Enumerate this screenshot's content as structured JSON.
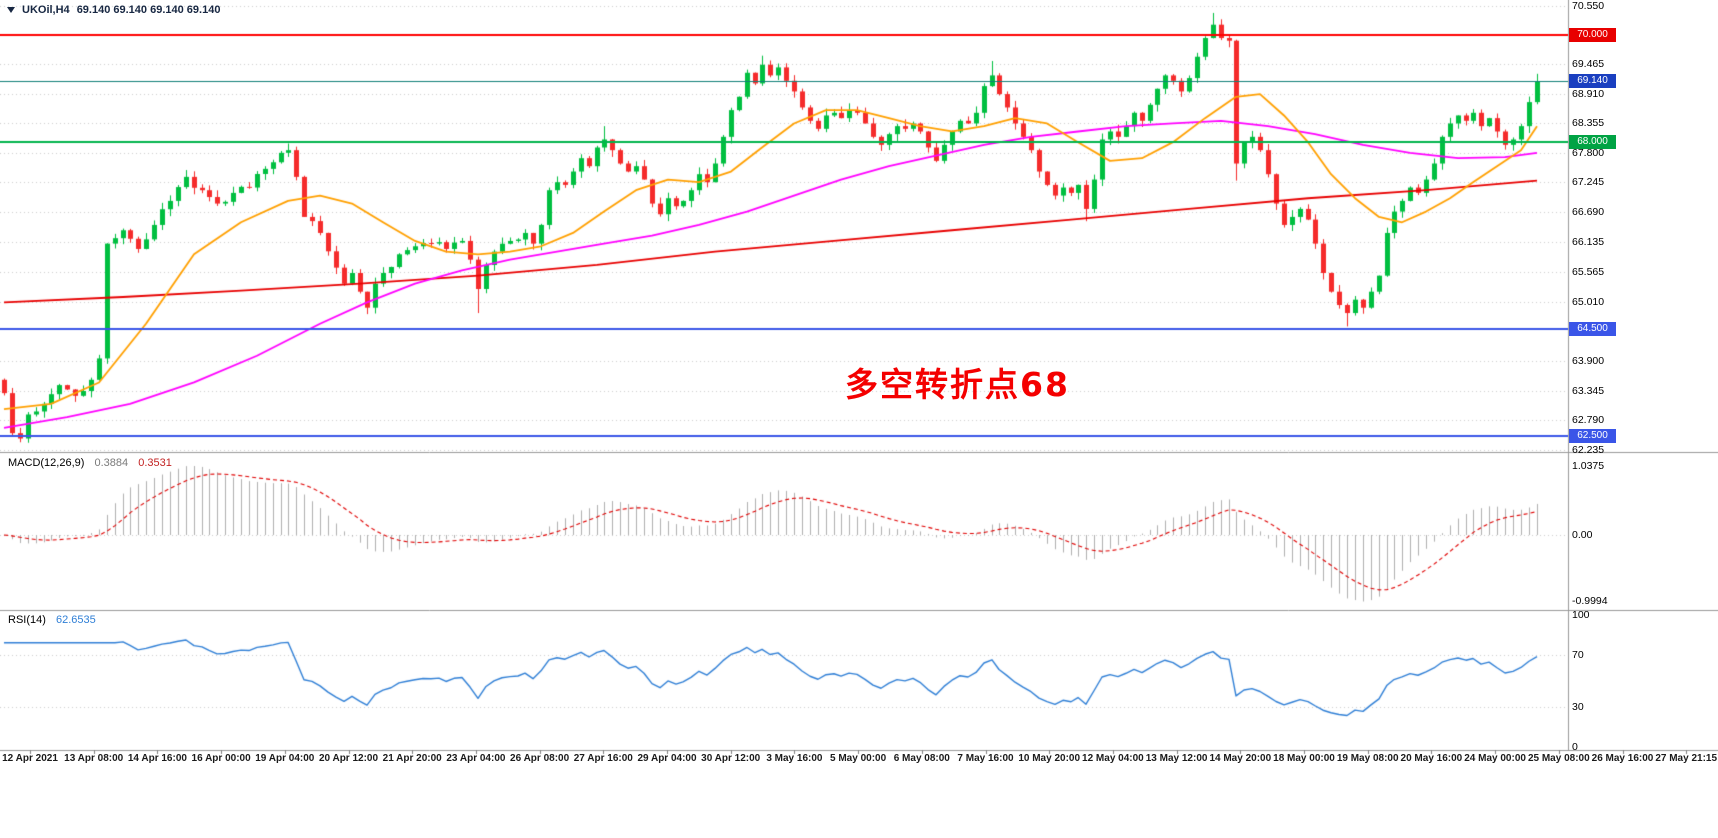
{
  "header": {
    "symbol": "UKOil,H4",
    "ohlc": "69.140 69.140 69.140 69.140"
  },
  "annotation": {
    "text": "多空转折点68",
    "color": "#F40000"
  },
  "price_axis": {
    "regular_labels": [
      "70.550",
      "69.465",
      "68.910",
      "68.355",
      "67.800",
      "67.245",
      "66.690",
      "66.135",
      "65.565",
      "65.010",
      "63.900",
      "63.345",
      "62.790",
      "62.235"
    ]
  },
  "macd_panel": {
    "title": "MACD(12,26,9)",
    "macd_value": "0.3884",
    "signal_value": "0.3531",
    "axis_labels": [
      "1.0375",
      "0.00",
      "-0.9994"
    ]
  },
  "rsi_panel": {
    "title": "RSI(14)",
    "value": "62.6535",
    "axis_labels": [
      "100",
      "70",
      "30",
      "0"
    ]
  },
  "time_axis": {
    "labels": [
      "12 Apr 2021",
      "13 Apr 08:00",
      "14 Apr 16:00",
      "16 Apr 00:00",
      "19 Apr 04:00",
      "20 Apr 12:00",
      "21 Apr 20:00",
      "23 Apr 04:00",
      "26 Apr 08:00",
      "27 Apr 16:00",
      "29 Apr 04:00",
      "30 Apr 12:00",
      "3 May 16:00",
      "5 May 00:00",
      "6 May 08:00",
      "7 May 16:00",
      "10 May 20:00",
      "12 May 04:00",
      "13 May 12:00",
      "14 May 20:00",
      "18 May 00:00",
      "19 May 08:00",
      "20 May 16:00",
      "24 May 00:00",
      "25 May 08:00",
      "26 May 16:00",
      "27 May 21:15"
    ]
  },
  "chart_data": {
    "type": "candlestick",
    "symbol": "UKOil",
    "timeframe": "H4",
    "current_price": 69.14,
    "price_axis_range": [
      62.235,
      70.55
    ],
    "candle_count": 195,
    "bull_color": "#00BF40",
    "bear_color": "#F52B2B",
    "close_anchors": [
      [
        0,
        63.3
      ],
      [
        1,
        62.55
      ],
      [
        2,
        62.45
      ],
      [
        3,
        62.9
      ],
      [
        5,
        63.1
      ],
      [
        7,
        63.45
      ],
      [
        9,
        63.25
      ],
      [
        11,
        63.55
      ],
      [
        12,
        63.95
      ],
      [
        13,
        66.1
      ],
      [
        15,
        66.35
      ],
      [
        17,
        66.0
      ],
      [
        19,
        66.45
      ],
      [
        21,
        66.9
      ],
      [
        23,
        67.35
      ],
      [
        25,
        67.1
      ],
      [
        27,
        66.85
      ],
      [
        29,
        67.05
      ],
      [
        31,
        67.15
      ],
      [
        33,
        67.5
      ],
      [
        35,
        67.8
      ],
      [
        36,
        67.85
      ],
      [
        37,
        67.35
      ],
      [
        38,
        66.6
      ],
      [
        40,
        66.3
      ],
      [
        42,
        65.65
      ],
      [
        43,
        65.35
      ],
      [
        44,
        65.55
      ],
      [
        45,
        65.2
      ],
      [
        46,
        64.9
      ],
      [
        47,
        65.35
      ],
      [
        48,
        65.55
      ],
      [
        50,
        65.9
      ],
      [
        52,
        66.05
      ],
      [
        54,
        66.1
      ],
      [
        56,
        66.0
      ],
      [
        58,
        66.15
      ],
      [
        59,
        65.8
      ],
      [
        60,
        65.25
      ],
      [
        61,
        65.7
      ],
      [
        62,
        65.95
      ],
      [
        64,
        66.15
      ],
      [
        66,
        66.3
      ],
      [
        67,
        66.1
      ],
      [
        68,
        66.45
      ],
      [
        69,
        67.1
      ],
      [
        70,
        67.25
      ],
      [
        71,
        67.2
      ],
      [
        72,
        67.45
      ],
      [
        73,
        67.7
      ],
      [
        74,
        67.55
      ],
      [
        75,
        67.9
      ],
      [
        76,
        68.05
      ],
      [
        77,
        67.85
      ],
      [
        78,
        67.6
      ],
      [
        79,
        67.45
      ],
      [
        80,
        67.55
      ],
      [
        81,
        67.3
      ],
      [
        82,
        66.85
      ],
      [
        83,
        66.65
      ],
      [
        84,
        66.95
      ],
      [
        85,
        66.8
      ],
      [
        86,
        66.9
      ],
      [
        87,
        67.1
      ],
      [
        88,
        67.4
      ],
      [
        89,
        67.25
      ],
      [
        90,
        67.6
      ],
      [
        91,
        68.1
      ],
      [
        92,
        68.6
      ],
      [
        93,
        68.85
      ],
      [
        94,
        69.3
      ],
      [
        95,
        69.1
      ],
      [
        96,
        69.45
      ],
      [
        97,
        69.25
      ],
      [
        98,
        69.4
      ],
      [
        99,
        69.15
      ],
      [
        100,
        68.95
      ],
      [
        101,
        68.65
      ],
      [
        102,
        68.4
      ],
      [
        103,
        68.25
      ],
      [
        104,
        68.5
      ],
      [
        105,
        68.55
      ],
      [
        106,
        68.45
      ],
      [
        107,
        68.6
      ],
      [
        108,
        68.55
      ],
      [
        109,
        68.35
      ],
      [
        110,
        68.1
      ],
      [
        111,
        67.95
      ],
      [
        112,
        68.15
      ],
      [
        113,
        68.3
      ],
      [
        114,
        68.25
      ],
      [
        115,
        68.35
      ],
      [
        116,
        68.2
      ],
      [
        117,
        67.9
      ],
      [
        118,
        67.65
      ],
      [
        119,
        67.95
      ],
      [
        120,
        68.2
      ],
      [
        121,
        68.4
      ],
      [
        122,
        68.35
      ],
      [
        123,
        68.55
      ],
      [
        124,
        69.05
      ],
      [
        125,
        69.25
      ],
      [
        126,
        68.9
      ],
      [
        127,
        68.65
      ],
      [
        128,
        68.35
      ],
      [
        129,
        68.1
      ],
      [
        130,
        67.85
      ],
      [
        131,
        67.45
      ],
      [
        132,
        67.2
      ],
      [
        133,
        67.0
      ],
      [
        134,
        67.15
      ],
      [
        135,
        67.05
      ],
      [
        136,
        67.2
      ],
      [
        137,
        66.75
      ],
      [
        138,
        67.3
      ],
      [
        139,
        68.05
      ],
      [
        140,
        68.2
      ],
      [
        141,
        68.1
      ],
      [
        142,
        68.3
      ],
      [
        143,
        68.55
      ],
      [
        144,
        68.4
      ],
      [
        145,
        68.7
      ],
      [
        146,
        69.0
      ],
      [
        147,
        69.25
      ],
      [
        148,
        69.15
      ],
      [
        149,
        68.95
      ],
      [
        150,
        69.2
      ],
      [
        151,
        69.6
      ],
      [
        152,
        69.95
      ],
      [
        153,
        70.2
      ],
      [
        154,
        69.95
      ],
      [
        155,
        69.9
      ],
      [
        156,
        67.6
      ],
      [
        157,
        68.0
      ],
      [
        158,
        68.1
      ],
      [
        159,
        67.85
      ],
      [
        160,
        67.4
      ],
      [
        161,
        66.85
      ],
      [
        162,
        66.45
      ],
      [
        163,
        66.6
      ],
      [
        164,
        66.75
      ],
      [
        165,
        66.55
      ],
      [
        166,
        66.1
      ],
      [
        167,
        65.55
      ],
      [
        168,
        65.2
      ],
      [
        169,
        64.95
      ],
      [
        170,
        64.8
      ],
      [
        171,
        65.05
      ],
      [
        172,
        64.9
      ],
      [
        173,
        65.2
      ],
      [
        174,
        65.5
      ],
      [
        175,
        66.3
      ],
      [
        176,
        66.7
      ],
      [
        177,
        66.9
      ],
      [
        178,
        67.15
      ],
      [
        179,
        67.05
      ],
      [
        180,
        67.3
      ],
      [
        181,
        67.6
      ],
      [
        182,
        68.1
      ],
      [
        183,
        68.35
      ],
      [
        184,
        68.5
      ],
      [
        185,
        68.4
      ],
      [
        186,
        68.55
      ],
      [
        187,
        68.3
      ],
      [
        188,
        68.45
      ],
      [
        189,
        68.2
      ],
      [
        190,
        67.95
      ],
      [
        191,
        68.05
      ],
      [
        192,
        68.3
      ],
      [
        193,
        68.75
      ],
      [
        194,
        69.14
      ]
    ],
    "wick_overrides": {
      "2": {
        "low": 62.38
      },
      "13": {
        "low": 63.85
      },
      "46": {
        "low": 64.78
      },
      "60": {
        "low": 64.8
      },
      "76": {
        "high": 68.3
      },
      "96": {
        "high": 69.62
      },
      "125": {
        "high": 69.52
      },
      "137": {
        "low": 66.52
      },
      "153": {
        "high": 70.42
      },
      "156": {
        "low": 67.28
      },
      "170": {
        "low": 64.55
      },
      "194": {
        "high": 69.28
      }
    },
    "moving_averages": [
      {
        "name": "ma-slow-red",
        "color": "#E80000",
        "width": 1.8,
        "points": [
          [
            0,
            65.0
          ],
          [
            15,
            65.1
          ],
          [
            30,
            65.22
          ],
          [
            45,
            65.35
          ],
          [
            60,
            65.5
          ],
          [
            75,
            65.7
          ],
          [
            90,
            65.95
          ],
          [
            105,
            66.15
          ],
          [
            120,
            66.35
          ],
          [
            135,
            66.55
          ],
          [
            150,
            66.75
          ],
          [
            165,
            66.95
          ],
          [
            180,
            67.1
          ],
          [
            194,
            67.28
          ]
        ]
      },
      {
        "name": "ma-mid-magenta",
        "color": "#FF00FF",
        "width": 1.8,
        "points": [
          [
            0,
            62.65
          ],
          [
            8,
            62.85
          ],
          [
            16,
            63.1
          ],
          [
            24,
            63.5
          ],
          [
            32,
            64.0
          ],
          [
            40,
            64.6
          ],
          [
            46,
            65.0
          ],
          [
            52,
            65.35
          ],
          [
            58,
            65.6
          ],
          [
            64,
            65.8
          ],
          [
            70,
            65.95
          ],
          [
            76,
            66.1
          ],
          [
            82,
            66.25
          ],
          [
            88,
            66.45
          ],
          [
            94,
            66.7
          ],
          [
            100,
            67.0
          ],
          [
            106,
            67.3
          ],
          [
            112,
            67.55
          ],
          [
            118,
            67.75
          ],
          [
            124,
            67.95
          ],
          [
            130,
            68.1
          ],
          [
            136,
            68.2
          ],
          [
            142,
            68.3
          ],
          [
            148,
            68.35
          ],
          [
            154,
            68.4
          ],
          [
            160,
            68.3
          ],
          [
            166,
            68.15
          ],
          [
            172,
            67.95
          ],
          [
            178,
            67.8
          ],
          [
            184,
            67.7
          ],
          [
            190,
            67.72
          ],
          [
            194,
            67.8
          ]
        ]
      },
      {
        "name": "ma-fast-orange",
        "color": "#FFA000",
        "width": 1.8,
        "points": [
          [
            0,
            63.0
          ],
          [
            6,
            63.1
          ],
          [
            12,
            63.5
          ],
          [
            18,
            64.6
          ],
          [
            24,
            65.9
          ],
          [
            30,
            66.5
          ],
          [
            36,
            66.9
          ],
          [
            40,
            67.0
          ],
          [
            44,
            66.85
          ],
          [
            48,
            66.5
          ],
          [
            52,
            66.15
          ],
          [
            56,
            65.95
          ],
          [
            60,
            65.9
          ],
          [
            64,
            65.95
          ],
          [
            68,
            66.05
          ],
          [
            72,
            66.3
          ],
          [
            76,
            66.7
          ],
          [
            80,
            67.1
          ],
          [
            84,
            67.3
          ],
          [
            88,
            67.25
          ],
          [
            92,
            67.45
          ],
          [
            96,
            67.9
          ],
          [
            100,
            68.35
          ],
          [
            104,
            68.6
          ],
          [
            108,
            68.6
          ],
          [
            112,
            68.45
          ],
          [
            116,
            68.3
          ],
          [
            120,
            68.2
          ],
          [
            124,
            68.3
          ],
          [
            128,
            68.45
          ],
          [
            132,
            68.35
          ],
          [
            136,
            68.0
          ],
          [
            140,
            67.65
          ],
          [
            144,
            67.7
          ],
          [
            148,
            68.0
          ],
          [
            152,
            68.45
          ],
          [
            156,
            68.85
          ],
          [
            159,
            68.9
          ],
          [
            162,
            68.5
          ],
          [
            165,
            68.0
          ],
          [
            168,
            67.4
          ],
          [
            171,
            66.95
          ],
          [
            174,
            66.6
          ],
          [
            177,
            66.5
          ],
          [
            180,
            66.7
          ],
          [
            183,
            66.95
          ],
          [
            186,
            67.25
          ],
          [
            189,
            67.55
          ],
          [
            192,
            67.85
          ],
          [
            194,
            68.3
          ]
        ]
      }
    ],
    "horizontal_lines": [
      {
        "price": 70.0,
        "color": "#FF0000",
        "width": 2,
        "label": "70.000",
        "label_bg": "#E80000"
      },
      {
        "price": 69.14,
        "color": "#0F8078",
        "width": 1.2,
        "label": "69.140",
        "label_bg": "#1A3FC0"
      },
      {
        "price": 68.0,
        "color": "#00B44C",
        "width": 2,
        "label": "68.000",
        "label_bg": "#00A344"
      },
      {
        "price": 64.5,
        "color": "#3A55E8",
        "width": 2,
        "label": "64.500",
        "label_bg": "#3A55E8"
      },
      {
        "price": 62.5,
        "color": "#3A55E8",
        "width": 2,
        "label": "62.500",
        "label_bg": "#3A55E8"
      }
    ],
    "macd": {
      "params": [
        12,
        26,
        9
      ],
      "macd_current": 0.3884,
      "signal_current": 0.3531,
      "axis_max": 1.0375,
      "axis_min": -0.9994,
      "histogram_color": "#B0B0B0",
      "signal_color": "#E00000",
      "signal_style": "dashed"
    },
    "rsi": {
      "period": 14,
      "current": 62.6535,
      "levels": [
        70,
        30
      ],
      "line_color": "#2F7FD6"
    }
  }
}
